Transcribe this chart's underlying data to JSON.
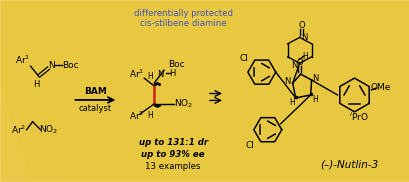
{
  "bg_color": "#f0d060",
  "stripe_color": "#e8c840",
  "text_color": "#000000",
  "blue_color": "#4455bb",
  "red_color": "#cc2222",
  "figsize": [
    4.1,
    1.82
  ],
  "dpi": 100,
  "label_blue": "differentially protected\ncis-stilbene diamine",
  "label_it1": "up to 131:1 dr",
  "label_it2": "up to 93% ee",
  "label_plain": "13 examples",
  "product": "(–)-Nutlin-3",
  "bam": "BAM",
  "catalyst": "catalyst"
}
